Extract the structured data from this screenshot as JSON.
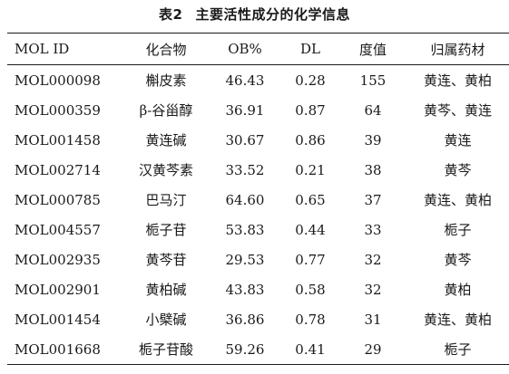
{
  "caption": {
    "label": "表2",
    "title": "主要活性成分的化学信息"
  },
  "table": {
    "headers": [
      "MOL ID",
      "化合物",
      "OB%",
      "DL",
      "度值",
      "归属药材"
    ],
    "rows": [
      [
        "MOL000098",
        "槲皮素",
        "46.43",
        "0.28",
        "155",
        "黄连、黄柏"
      ],
      [
        "MOL000359",
        "β-谷甾醇",
        "36.91",
        "0.87",
        "64",
        "黄芩、黄连"
      ],
      [
        "MOL001458",
        "黄连碱",
        "30.67",
        "0.86",
        "39",
        "黄连"
      ],
      [
        "MOL002714",
        "汉黄芩素",
        "33.52",
        "0.21",
        "38",
        "黄芩"
      ],
      [
        "MOL000785",
        "巴马汀",
        "64.60",
        "0.65",
        "37",
        "黄连、黄柏"
      ],
      [
        "MOL004557",
        "栀子苷",
        "53.83",
        "0.44",
        "33",
        "栀子"
      ],
      [
        "MOL002935",
        "黄芩苷",
        "29.53",
        "0.77",
        "32",
        "黄芩"
      ],
      [
        "MOL002901",
        "黄柏碱",
        "43.83",
        "0.58",
        "32",
        "黄柏"
      ],
      [
        "MOL001454",
        "小檗碱",
        "36.86",
        "0.78",
        "31",
        "黄连、黄柏"
      ],
      [
        "MOL001668",
        "栀子苷酸",
        "59.26",
        "0.41",
        "29",
        "栀子"
      ]
    ]
  }
}
